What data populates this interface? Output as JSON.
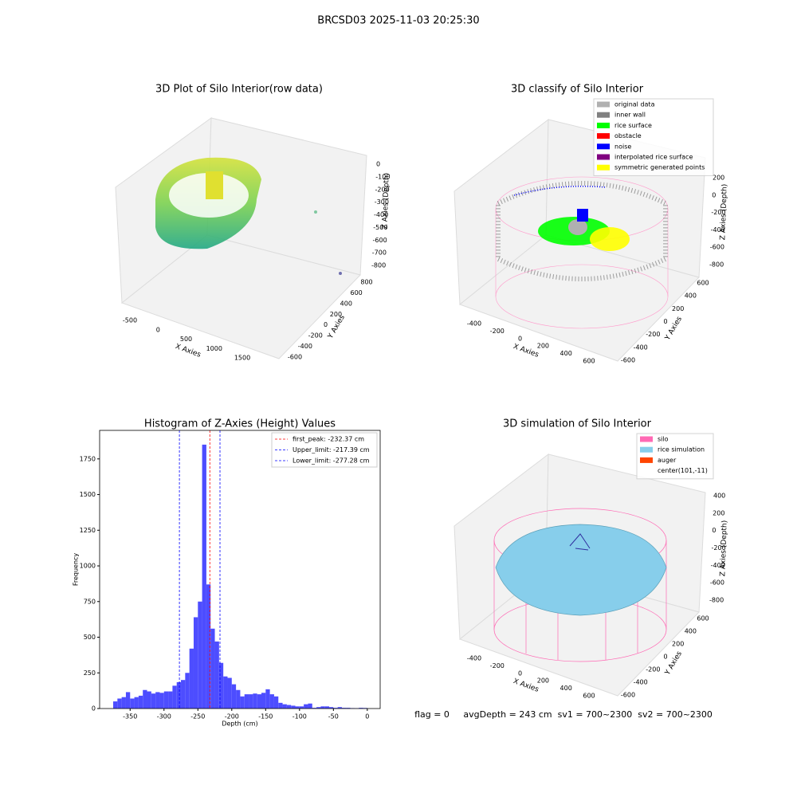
{
  "title": "BRCSD03 2025-11-03 20:25:30",
  "footer": "flag = 0     avgDepth = 243 cm  sv1 = 700~2300  sv2 = 700~2300",
  "chart_data": [
    {
      "type": "scatter3d",
      "title": "3D Plot of Silo Interior(row data)",
      "xlabel": "X Axies",
      "ylabel": "Y Axies",
      "zlabel": "Z Axies (Depth)",
      "xticks": [
        -500,
        0,
        500,
        1000,
        1500
      ],
      "yticks": [
        -600,
        -400,
        -200,
        0,
        200,
        400,
        600,
        800
      ],
      "zticks": [
        0,
        -100,
        -200,
        -300,
        -400,
        -500,
        -600,
        -700,
        -800
      ]
    },
    {
      "type": "scatter3d",
      "title": "3D classify of Silo Interior",
      "xlabel": "X Axies",
      "ylabel": "Y Axies",
      "zlabel": "Z Axies (Depth)",
      "xticks": [
        -400,
        -200,
        0,
        200,
        400,
        600
      ],
      "yticks": [
        -600,
        -400,
        -200,
        0,
        200,
        400,
        600
      ],
      "zticks": [
        200,
        0,
        -200,
        -400,
        -600,
        -800
      ],
      "series": [
        {
          "name": "original data",
          "color": "#b0b0b0"
        },
        {
          "name": "inner wall",
          "color": "#808080"
        },
        {
          "name": "rice surface",
          "color": "#00ff00"
        },
        {
          "name": "obstacle",
          "color": "#ff0000"
        },
        {
          "name": "noise",
          "color": "#0000ff"
        },
        {
          "name": "interpolated rice surface",
          "color": "#800080"
        },
        {
          "name": "symmetric generated points",
          "color": "#ffff00"
        }
      ]
    },
    {
      "type": "histogram",
      "title": "Histogram of Z-Axies (Height) Values",
      "xlabel": "Depth (cm)",
      "ylabel": "Frequency",
      "color": "#4d4dff",
      "bins": [
        -375,
        -368.75,
        -362.5,
        -356.25,
        -350,
        -343.75,
        -337.5,
        -331.25,
        -325,
        -318.75,
        -312.5,
        -306.25,
        -300,
        -293.75,
        -287.5,
        -281.25,
        -275,
        -268.75,
        -262.5,
        -256.25,
        -250,
        -243.75,
        -237.5,
        -231.25,
        -225,
        -218.75,
        -212.5,
        -206.25,
        -200,
        -193.75,
        -187.5,
        -181.25,
        -175,
        -168.75,
        -162.5,
        -156.25,
        -150,
        -143.75,
        -137.5,
        -131.25,
        -125,
        -118.75,
        -112.5,
        -106.25,
        -100,
        -93.75,
        -87.5,
        -81.25,
        -75,
        -68.75,
        -62.5,
        -56.25,
        -50,
        -43.75,
        -37.5,
        -31.25,
        -25,
        -18.75,
        -12.5,
        -6.25,
        0
      ],
      "counts": [
        50,
        70,
        80,
        115,
        70,
        80,
        90,
        130,
        120,
        105,
        115,
        110,
        120,
        120,
        160,
        185,
        200,
        250,
        420,
        640,
        750,
        1850,
        870,
        560,
        470,
        320,
        225,
        215,
        170,
        130,
        85,
        100,
        100,
        105,
        100,
        110,
        135,
        100,
        85,
        40,
        30,
        25,
        20,
        15,
        15,
        30,
        35,
        5,
        10,
        15,
        15,
        10,
        5,
        10,
        5,
        5,
        3,
        2,
        5,
        4
      ],
      "xlim": [
        -395,
        19
      ],
      "ylim": [
        0,
        1950
      ],
      "xticks": [
        -350,
        -300,
        -250,
        -200,
        -150,
        -100,
        -50,
        0
      ],
      "yticks": [
        0,
        250,
        500,
        750,
        1000,
        1250,
        1500,
        1750
      ],
      "lines": [
        {
          "name": "first_peak: -232.37 cm",
          "value": -232.37,
          "color": "#ff0000"
        },
        {
          "name": "Upper_limit: -217.39 cm",
          "value": -217.39,
          "color": "#0000ff"
        },
        {
          "name": "Lower_limit: -277.28 cm",
          "value": -277.28,
          "color": "#0000ff"
        }
      ]
    },
    {
      "type": "scatter3d",
      "title": "3D simulation of Silo Interior",
      "xlabel": "X Axies",
      "ylabel": "Y Axies",
      "zlabel": "Z Axies (Depth)",
      "xticks": [
        -400,
        -200,
        0,
        200,
        400,
        600
      ],
      "yticks": [
        -600,
        -400,
        -200,
        0,
        200,
        400,
        600
      ],
      "zticks": [
        400,
        200,
        0,
        -200,
        -400,
        -600,
        -800
      ],
      "series": [
        {
          "name": "silo",
          "color": "#ff69b4"
        },
        {
          "name": "rice simulation",
          "color": "#87ceeb"
        },
        {
          "name": "auger",
          "color": "#ff4500"
        },
        {
          "name": "center(101,-11)"
        }
      ]
    }
  ]
}
